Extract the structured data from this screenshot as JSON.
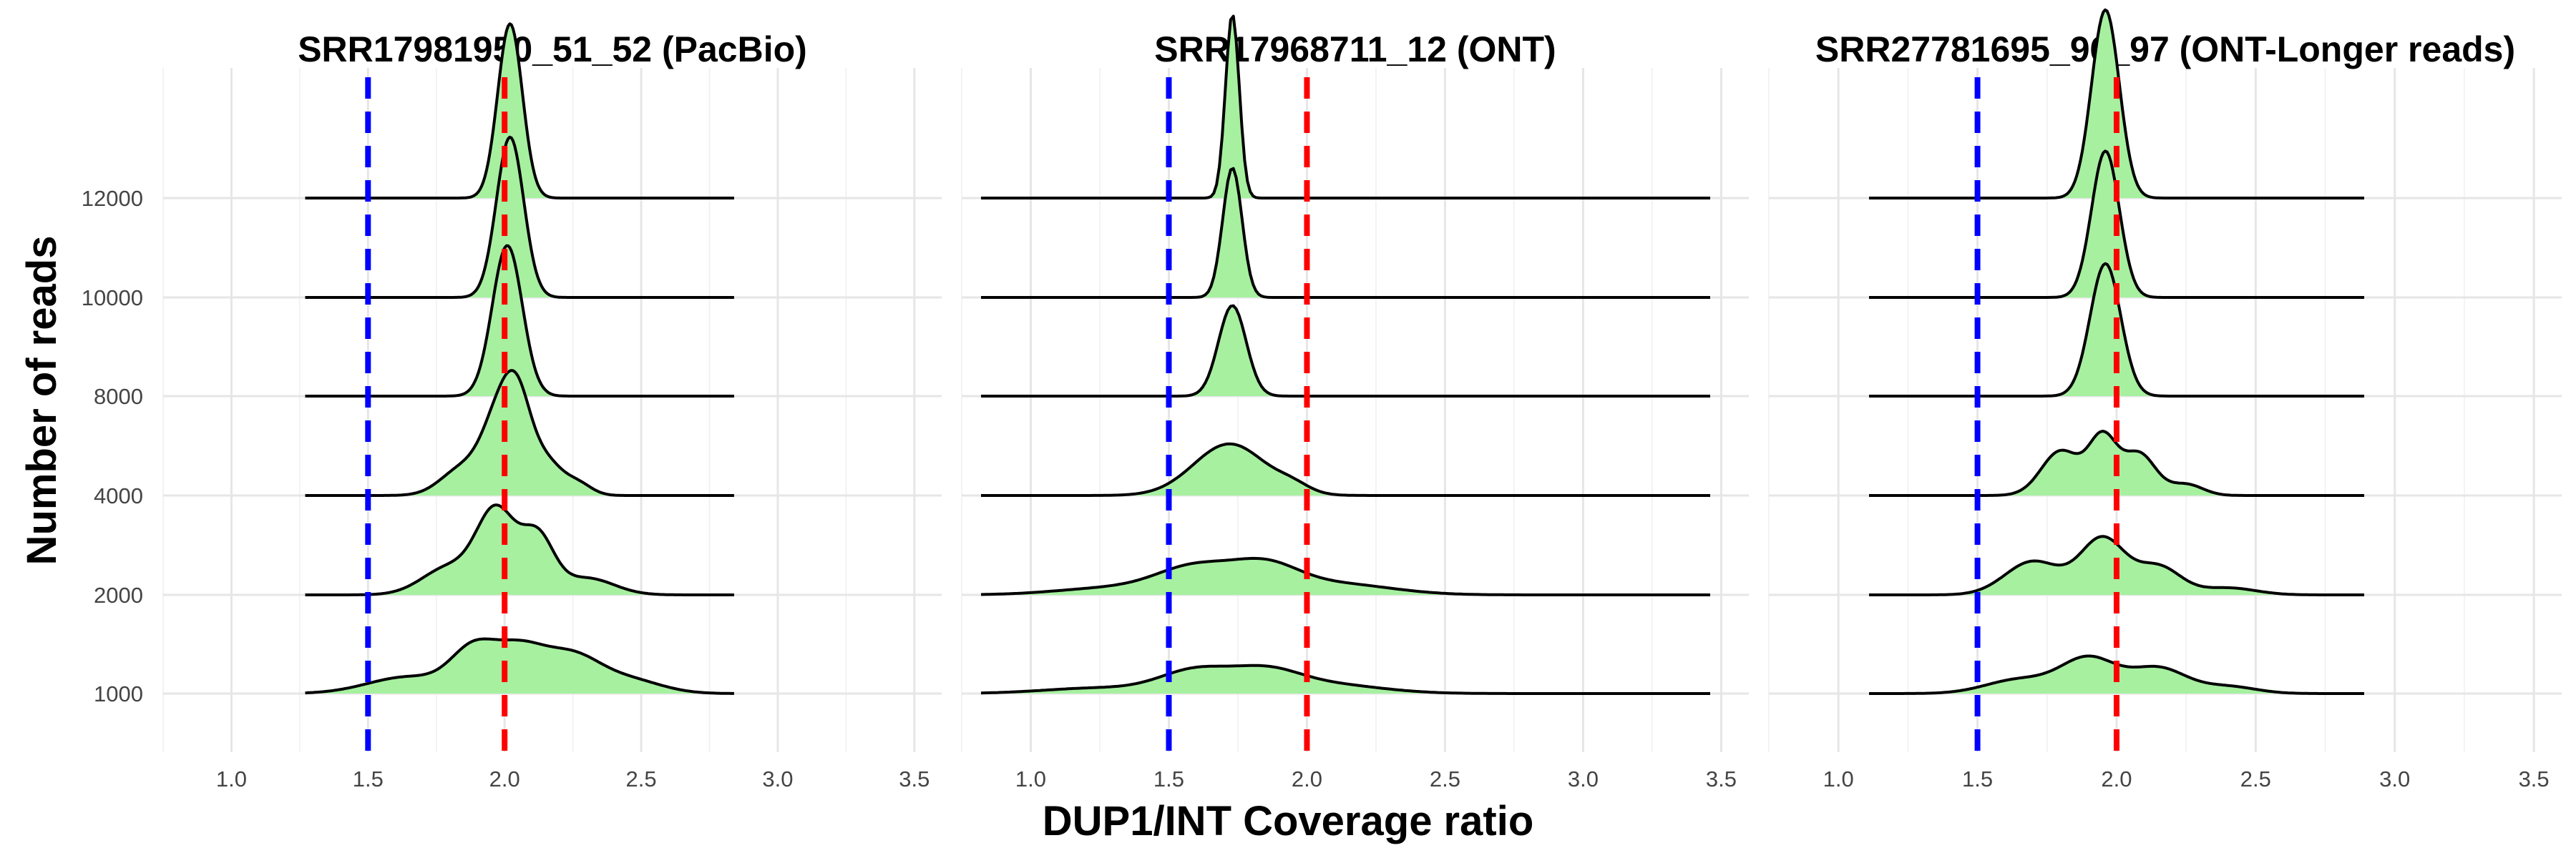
{
  "colors": {
    "fill": "#a6f0a0",
    "outline": "#000000",
    "ref_blue": "#0000ff",
    "ref_red": "#ff0000",
    "grid": "#e6e6e6"
  },
  "chart_data": {
    "type": "ridgeline",
    "xlabel": "DUP1/INT Coverage ratio",
    "ylabel": "Number of reads",
    "xlim": [
      0.75,
      3.6
    ],
    "x_ticks": [
      "1.0",
      "1.5",
      "2.0",
      "2.5",
      "3.0",
      "3.5"
    ],
    "y_categories": [
      "1000",
      "2000",
      "4000",
      "8000",
      "10000",
      "12000"
    ],
    "reference_lines": [
      {
        "x": 1.5,
        "color": "blue",
        "style": "dashed"
      },
      {
        "x": 2.0,
        "color": "red",
        "style": "dashed"
      }
    ],
    "grid": true,
    "legend": "none",
    "panels": [
      {
        "title": "SRR17981950_51_52 (PacBio)",
        "x_range": [
          1.27,
          2.84
        ],
        "ridges": [
          {
            "reads": "1000",
            "peaks": [
              [
                1.65,
                0.15,
                0.12
              ],
              [
                1.88,
                0.08,
                0.26
              ],
              [
                2.05,
                0.1,
                0.32
              ],
              [
                2.25,
                0.1,
                0.24
              ],
              [
                2.45,
                0.12,
                0.1
              ]
            ]
          },
          {
            "reads": "2000",
            "peaks": [
              [
                1.8,
                0.1,
                0.2
              ],
              [
                1.97,
                0.07,
                0.58
              ],
              [
                2.12,
                0.06,
                0.4
              ],
              [
                2.3,
                0.1,
                0.12
              ]
            ]
          },
          {
            "reads": "4000",
            "peaks": [
              [
                1.85,
                0.08,
                0.2
              ],
              [
                1.98,
                0.06,
                0.52
              ],
              [
                2.05,
                0.05,
                0.52
              ],
              [
                2.15,
                0.06,
                0.24
              ],
              [
                2.27,
                0.05,
                0.08
              ]
            ]
          },
          {
            "reads": "8000",
            "peaks": [
              [
                2.01,
                0.055,
                1.08
              ]
            ]
          },
          {
            "reads": "10000",
            "peaks": [
              [
                2.02,
                0.05,
                1.15
              ]
            ]
          },
          {
            "reads": "12000",
            "peaks": [
              [
                2.02,
                0.045,
                1.25
              ]
            ]
          }
        ]
      },
      {
        "title": "SRR17968711_12 (ONT)",
        "x_range": [
          0.82,
          3.46
        ],
        "ridges": [
          {
            "reads": "1000",
            "peaks": [
              [
                1.6,
                0.13,
                0.16
              ],
              [
                1.85,
                0.12,
                0.13
              ],
              [
                2.05,
                0.2,
                0.07
              ],
              [
                1.25,
                0.2,
                0.04
              ]
            ]
          },
          {
            "reads": "2000",
            "peaks": [
              [
                1.6,
                0.14,
                0.19
              ],
              [
                1.85,
                0.12,
                0.18
              ],
              [
                2.1,
                0.2,
                0.08
              ],
              [
                1.3,
                0.2,
                0.05
              ]
            ]
          },
          {
            "reads": "4000",
            "peaks": [
              [
                1.72,
                0.13,
                0.37
              ],
              [
                1.95,
                0.06,
                0.05
              ]
            ]
          },
          {
            "reads": "8000",
            "peaks": [
              [
                1.73,
                0.05,
                0.65
              ]
            ]
          },
          {
            "reads": "10000",
            "peaks": [
              [
                1.73,
                0.035,
                0.93
              ]
            ]
          },
          {
            "reads": "12000",
            "peaks": [
              [
                1.73,
                0.025,
                1.32
              ]
            ]
          }
        ]
      },
      {
        "title": "SRR27781695_96_97 (ONT-Longer reads)",
        "x_range": [
          1.11,
          2.89
        ],
        "ridges": [
          {
            "reads": "1000",
            "peaks": [
              [
                1.65,
                0.12,
                0.1
              ],
              [
                1.9,
                0.1,
                0.25
              ],
              [
                2.15,
                0.1,
                0.18
              ],
              [
                2.4,
                0.1,
                0.05
              ]
            ]
          },
          {
            "reads": "2000",
            "peaks": [
              [
                1.7,
                0.1,
                0.24
              ],
              [
                1.95,
                0.08,
                0.4
              ],
              [
                2.15,
                0.08,
                0.2
              ],
              [
                2.4,
                0.1,
                0.05
              ]
            ]
          },
          {
            "reads": "4000",
            "peaks": [
              [
                1.8,
                0.07,
                0.32
              ],
              [
                1.95,
                0.05,
                0.4
              ],
              [
                2.08,
                0.06,
                0.3
              ],
              [
                2.25,
                0.06,
                0.08
              ]
            ]
          },
          {
            "reads": "8000",
            "peaks": [
              [
                1.96,
                0.055,
                0.95
              ]
            ]
          },
          {
            "reads": "10000",
            "peaks": [
              [
                1.96,
                0.05,
                1.05
              ]
            ]
          },
          {
            "reads": "12000",
            "peaks": [
              [
                1.96,
                0.05,
                1.35
              ]
            ]
          }
        ]
      }
    ]
  }
}
